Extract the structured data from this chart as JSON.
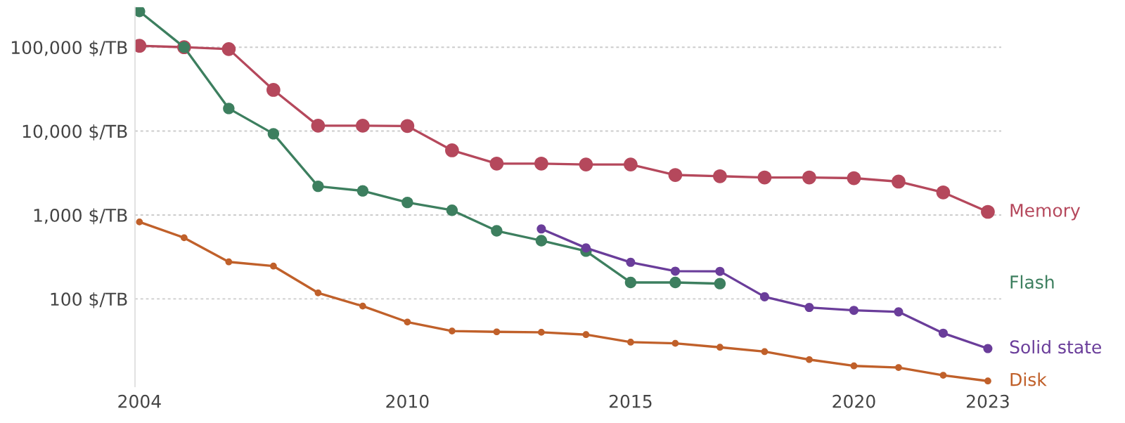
{
  "chart_data": {
    "type": "line",
    "log": "y",
    "grid": "y",
    "marker": "circle",
    "line_style": "solid",
    "legend": false,
    "x": [
      2004,
      2005,
      2006,
      2007,
      2008,
      2009,
      2010,
      2011,
      2012,
      2013,
      2014,
      2015,
      2016,
      2017,
      2018,
      2019,
      2020,
      2021,
      2022,
      2023
    ],
    "xlim": [
      2003.9,
      2023.3
    ],
    "xticks": [
      2004,
      2010,
      2015,
      2020,
      2023
    ],
    "ylim": [
      9,
      300000
    ],
    "yticks": [
      {
        "value": 100,
        "label": "100 $/TB"
      },
      {
        "value": 1000,
        "label": "1,000 $/TB"
      },
      {
        "value": 10000,
        "label": "10,000 $/TB"
      },
      {
        "value": 100000,
        "label": "100,000 $/TB"
      }
    ],
    "series": [
      {
        "name": "Memory",
        "color": "#b5485c",
        "values": [
          104000,
          100000,
          95000,
          31000,
          11600,
          11600,
          11500,
          5900,
          4100,
          4100,
          4000,
          4000,
          3000,
          2900,
          2800,
          2800,
          2750,
          2500,
          1860,
          1090
        ]
      },
      {
        "name": "Flash",
        "color": "#3d7f5f",
        "values": [
          267000,
          100000,
          18600,
          9300,
          2200,
          1940,
          1410,
          1140,
          647,
          495,
          371,
          157,
          157,
          152,
          null,
          null,
          null,
          null,
          null,
          null
        ]
      },
      {
        "name": "Solid state",
        "color": "#6a3d9a",
        "values": [
          null,
          null,
          null,
          null,
          null,
          null,
          null,
          null,
          null,
          682,
          405,
          273,
          214,
          213,
          106,
          79,
          73,
          70,
          39,
          25.6
        ]
      },
      {
        "name": "Disk",
        "color": "#c0602a",
        "values": [
          826,
          535,
          276,
          246,
          118,
          82,
          53,
          41.4,
          40.5,
          40,
          37.5,
          30.5,
          29.5,
          26.5,
          23.5,
          18.9,
          15.9,
          15.2,
          12.3,
          10.5
        ]
      }
    ]
  }
}
